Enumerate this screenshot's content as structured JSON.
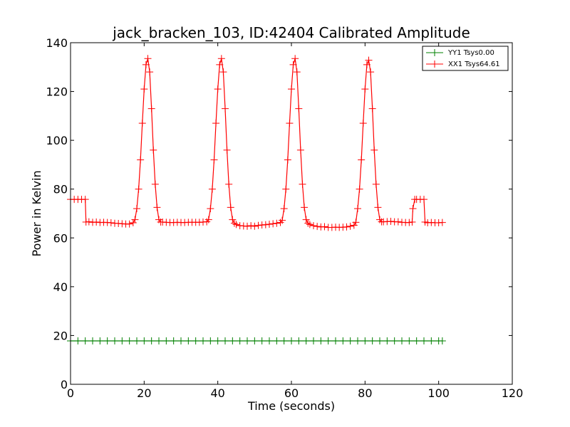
{
  "chart_data": {
    "type": "line",
    "title": "jack_bracken_103, ID:42404 Calibrated Amplitude",
    "xlabel": "Time (seconds)",
    "ylabel": "Power in Kelvin",
    "xlim": [
      0,
      120
    ],
    "ylim": [
      0,
      140
    ],
    "x_ticks": [
      "0",
      "20",
      "40",
      "60",
      "80",
      "100",
      "120"
    ],
    "y_ticks": [
      "0",
      "20",
      "40",
      "60",
      "80",
      "100",
      "120",
      "140"
    ],
    "grid": false,
    "legend_position": "top-right",
    "series": [
      {
        "name": "YY1 Tsys0.00",
        "color": "#008000",
        "marker": "+",
        "x": [
          0,
          2,
          4,
          6,
          8,
          10,
          12,
          14,
          16,
          18,
          20,
          22,
          24,
          26,
          28,
          30,
          32,
          34,
          36,
          38,
          40,
          42,
          44,
          46,
          48,
          50,
          52,
          54,
          56,
          58,
          60,
          62,
          64,
          66,
          68,
          70,
          72,
          74,
          76,
          78,
          80,
          82,
          84,
          86,
          88,
          90,
          92,
          94,
          96,
          98,
          100,
          101
        ],
        "y": [
          17.8,
          17.8,
          17.8,
          17.8,
          17.8,
          17.8,
          17.8,
          17.8,
          17.8,
          17.8,
          17.8,
          17.8,
          17.8,
          17.8,
          17.8,
          17.8,
          17.8,
          17.8,
          17.8,
          17.8,
          17.8,
          17.8,
          17.8,
          17.8,
          17.8,
          17.8,
          17.8,
          17.8,
          17.8,
          17.8,
          17.8,
          17.8,
          17.8,
          17.8,
          17.8,
          17.8,
          17.8,
          17.8,
          17.8,
          17.8,
          17.8,
          17.8,
          17.8,
          17.8,
          17.8,
          17.8,
          17.8,
          17.8,
          17.8,
          17.8,
          17.8,
          17.8
        ]
      },
      {
        "name": "XX1 Tsys64.61",
        "color": "#ff0000",
        "marker": "+",
        "x": [
          0,
          1,
          2,
          3,
          4,
          4.2,
          5,
          6,
          7,
          8,
          9,
          10,
          11,
          12,
          13,
          14,
          15,
          16,
          17,
          17.5,
          18,
          18.5,
          19,
          19.5,
          20,
          20.5,
          21,
          21.5,
          22,
          22.5,
          23,
          23.5,
          24,
          24.5,
          25,
          26,
          27,
          28,
          29,
          30,
          31,
          32,
          33,
          34,
          35,
          36,
          37,
          37.5,
          38,
          38.5,
          39,
          39.5,
          40,
          40.5,
          41,
          41.5,
          42,
          42.5,
          43,
          43.5,
          44,
          44.5,
          45,
          46,
          47,
          48,
          49,
          50,
          51,
          52,
          53,
          54,
          55,
          56,
          57,
          57.5,
          58,
          58.5,
          59,
          59.5,
          60,
          60.5,
          61,
          61.5,
          62,
          62.5,
          63,
          63.5,
          64,
          64.5,
          65,
          66,
          67,
          68,
          69,
          70,
          71,
          72,
          73,
          74,
          75,
          76,
          77,
          77.5,
          78,
          78.5,
          79,
          79.5,
          80,
          80.5,
          81,
          81.5,
          82,
          82.5,
          83,
          83.5,
          84,
          84.5,
          85,
          86,
          87,
          88,
          89,
          90,
          91,
          92,
          92.8,
          93,
          93.5,
          94,
          95,
          96,
          96.3,
          97,
          98,
          99,
          100,
          101
        ],
        "y": [
          75.8,
          75.8,
          75.8,
          75.8,
          75.8,
          66.5,
          66.6,
          66.4,
          66.5,
          66.3,
          66.4,
          66.3,
          66.2,
          66.0,
          65.9,
          65.8,
          65.7,
          65.7,
          66.2,
          67.5,
          72,
          80,
          92,
          107,
          121,
          131,
          133.5,
          128,
          113,
          96,
          82,
          72.5,
          67.5,
          66.5,
          66.5,
          66.4,
          66.3,
          66.3,
          66.4,
          66.3,
          66.3,
          66.4,
          66.4,
          66.4,
          66.4,
          66.5,
          66.6,
          67.5,
          72,
          80,
          92,
          107,
          121,
          131,
          133.5,
          128,
          113,
          96,
          82,
          72.5,
          67.5,
          66.0,
          65.5,
          65.0,
          64.9,
          64.8,
          65.0,
          64.8,
          65.1,
          65.3,
          65.4,
          65.6,
          65.8,
          66.0,
          66.3,
          67.2,
          72,
          80,
          92,
          107,
          121,
          131,
          133.5,
          128,
          113,
          96,
          82,
          72.5,
          67.5,
          66.0,
          65.5,
          65.0,
          64.7,
          64.5,
          64.6,
          64.3,
          64.3,
          64.4,
          64.3,
          64.4,
          64.5,
          64.8,
          65.2,
          66.4,
          72,
          80,
          92,
          107,
          121,
          131,
          132.8,
          128,
          113,
          96,
          82,
          72.5,
          67.5,
          66.6,
          66.6,
          66.7,
          66.8,
          66.6,
          66.6,
          66.4,
          66.3,
          66.3,
          66.5,
          72,
          75.8,
          75.8,
          75.8,
          75.8,
          66.5,
          66.2,
          66.3,
          66.2,
          66.2,
          66.3
        ]
      }
    ]
  }
}
